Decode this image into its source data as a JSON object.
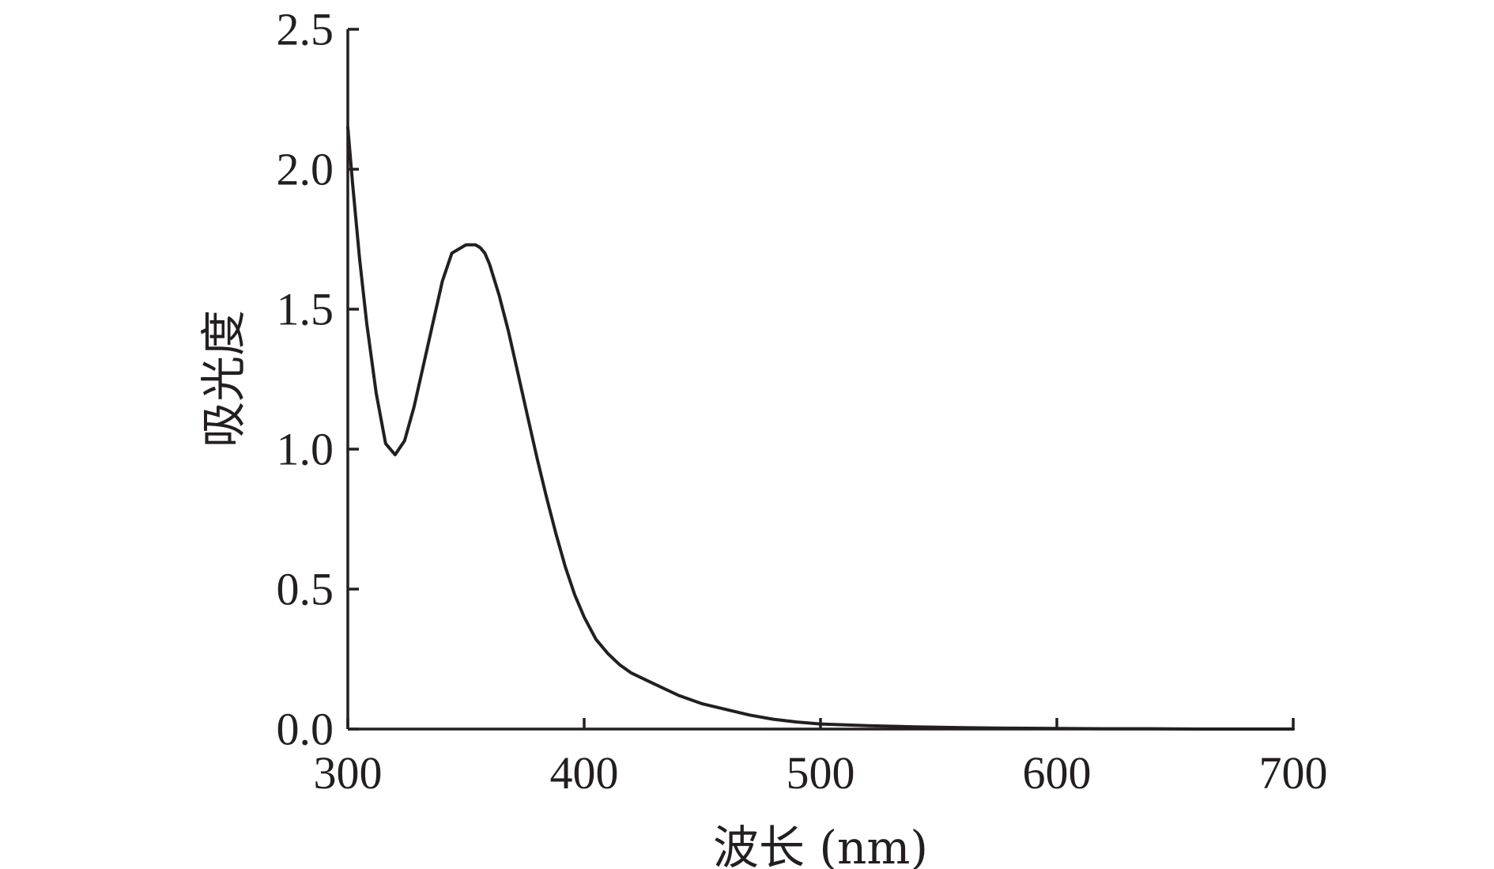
{
  "chart_data": {
    "type": "line",
    "title": "",
    "xlabel": "波长 (nm)",
    "ylabel": "吸光度",
    "xlim": [
      300,
      700
    ],
    "ylim": [
      0,
      2.5
    ],
    "x_ticks": [
      300,
      400,
      500,
      600,
      700
    ],
    "x_tick_labels": [
      "300",
      "400",
      "500",
      "600",
      "700"
    ],
    "y_ticks": [
      0,
      0.5,
      1.0,
      1.5,
      2.0,
      2.5
    ],
    "y_tick_labels": [
      "0.0",
      "0.5",
      "1.0",
      "1.5",
      "2.0",
      "2.5"
    ],
    "grid": false,
    "legend": "none",
    "colors": {
      "line": "#231f20",
      "axis": "#231f20"
    },
    "series": [
      {
        "x": [
          300,
          302,
          305,
          308,
          312,
          316,
          320,
          324,
          328,
          332,
          336,
          340,
          344,
          348,
          350,
          352,
          354,
          356,
          358,
          360,
          364,
          368,
          372,
          376,
          380,
          384,
          388,
          392,
          396,
          400,
          405,
          410,
          415,
          420,
          430,
          440,
          450,
          460,
          470,
          480,
          490,
          500,
          520,
          540,
          560,
          580,
          600,
          620,
          640,
          660,
          680,
          700
        ],
        "y": [
          2.15,
          1.95,
          1.68,
          1.45,
          1.2,
          1.02,
          0.98,
          1.03,
          1.15,
          1.3,
          1.45,
          1.6,
          1.7,
          1.72,
          1.73,
          1.73,
          1.73,
          1.72,
          1.7,
          1.66,
          1.55,
          1.42,
          1.27,
          1.12,
          0.97,
          0.83,
          0.7,
          0.58,
          0.48,
          0.4,
          0.32,
          0.27,
          0.23,
          0.2,
          0.16,
          0.12,
          0.09,
          0.07,
          0.05,
          0.035,
          0.025,
          0.018,
          0.012,
          0.008,
          0.005,
          0.003,
          0.002,
          0.001,
          0.001,
          0,
          0,
          0
        ]
      }
    ]
  }
}
